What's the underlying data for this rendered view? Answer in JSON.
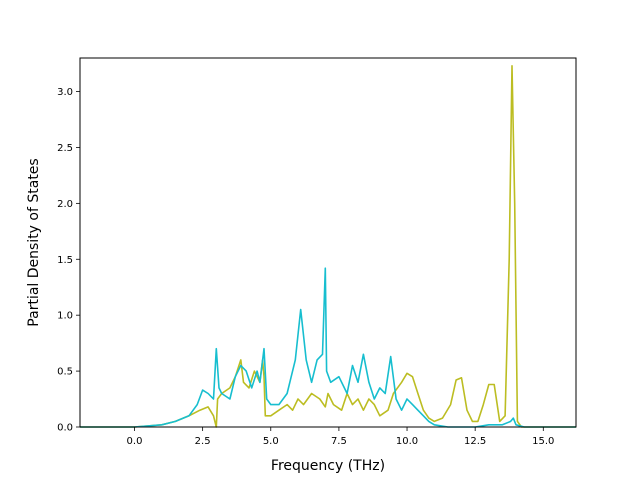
{
  "chart_data": {
    "type": "line",
    "title": "",
    "xlabel": "Frequency (THz)",
    "ylabel": "Partial Density of States",
    "xlim": [
      -2.0,
      16.2
    ],
    "ylim": [
      0.0,
      3.3
    ],
    "xticks": [
      0.0,
      2.5,
      5.0,
      7.5,
      10.0,
      12.5,
      15.0
    ],
    "xtick_labels": [
      "0.0",
      "2.5",
      "5.0",
      "7.5",
      "10.0",
      "12.5",
      "15.0"
    ],
    "yticks": [
      0.0,
      0.5,
      1.0,
      1.5,
      2.0,
      2.5,
      3.0
    ],
    "ytick_labels": [
      "0.0",
      "0.5",
      "1.0",
      "1.5",
      "2.0",
      "2.5",
      "3.0"
    ],
    "grid": false,
    "legend": false,
    "series": [
      {
        "color": "#bcbd22",
        "x": [
          -2.0,
          0.0,
          1.0,
          1.5,
          2.0,
          2.4,
          2.7,
          2.9,
          3.0,
          3.05,
          3.2,
          3.5,
          3.7,
          3.9,
          4.0,
          4.2,
          4.4,
          4.6,
          4.7,
          4.75,
          4.8,
          5.0,
          5.3,
          5.6,
          5.8,
          6.0,
          6.2,
          6.5,
          6.8,
          7.0,
          7.1,
          7.3,
          7.6,
          7.8,
          8.0,
          8.2,
          8.4,
          8.6,
          8.8,
          9.0,
          9.3,
          9.5,
          9.8,
          10.0,
          10.2,
          10.4,
          10.6,
          10.8,
          11.0,
          11.3,
          11.6,
          11.8,
          12.0,
          12.2,
          12.4,
          12.6,
          12.8,
          13.0,
          13.2,
          13.4,
          13.6,
          13.75,
          13.85,
          13.95,
          14.05,
          14.2,
          14.5,
          15.0,
          15.5,
          16.2
        ],
        "values": [
          0.0,
          0.0,
          0.02,
          0.05,
          0.1,
          0.15,
          0.18,
          0.1,
          0.0,
          0.25,
          0.3,
          0.35,
          0.45,
          0.6,
          0.4,
          0.35,
          0.5,
          0.4,
          0.6,
          0.45,
          0.1,
          0.1,
          0.15,
          0.2,
          0.15,
          0.25,
          0.2,
          0.3,
          0.25,
          0.18,
          0.3,
          0.2,
          0.15,
          0.3,
          0.2,
          0.25,
          0.15,
          0.25,
          0.2,
          0.1,
          0.15,
          0.3,
          0.4,
          0.48,
          0.45,
          0.3,
          0.15,
          0.08,
          0.05,
          0.08,
          0.2,
          0.42,
          0.44,
          0.15,
          0.05,
          0.05,
          0.2,
          0.38,
          0.38,
          0.05,
          0.1,
          1.5,
          3.23,
          2.0,
          0.05,
          0.0,
          0.0,
          0.0,
          0.0,
          0.0
        ]
      },
      {
        "color": "#17becf",
        "x": [
          -2.0,
          0.0,
          1.0,
          1.5,
          2.0,
          2.3,
          2.5,
          2.7,
          2.9,
          3.0,
          3.1,
          3.2,
          3.5,
          3.7,
          3.9,
          4.1,
          4.3,
          4.5,
          4.6,
          4.75,
          4.85,
          5.0,
          5.3,
          5.6,
          5.9,
          6.1,
          6.3,
          6.5,
          6.7,
          6.9,
          7.0,
          7.05,
          7.2,
          7.5,
          7.8,
          8.0,
          8.2,
          8.4,
          8.6,
          8.8,
          9.0,
          9.2,
          9.4,
          9.6,
          9.8,
          10.0,
          10.2,
          10.4,
          10.6,
          10.8,
          11.0,
          11.5,
          12.0,
          12.5,
          13.0,
          13.5,
          13.8,
          13.9,
          14.0,
          14.3,
          15.0,
          15.5,
          16.2
        ],
        "values": [
          0.0,
          0.0,
          0.02,
          0.05,
          0.1,
          0.2,
          0.33,
          0.3,
          0.25,
          0.7,
          0.35,
          0.3,
          0.25,
          0.45,
          0.55,
          0.5,
          0.35,
          0.5,
          0.4,
          0.7,
          0.25,
          0.2,
          0.2,
          0.3,
          0.6,
          1.05,
          0.6,
          0.4,
          0.6,
          0.65,
          1.42,
          0.5,
          0.4,
          0.45,
          0.3,
          0.55,
          0.4,
          0.65,
          0.4,
          0.25,
          0.35,
          0.3,
          0.63,
          0.25,
          0.15,
          0.25,
          0.2,
          0.15,
          0.1,
          0.05,
          0.02,
          0.0,
          0.0,
          0.0,
          0.02,
          0.02,
          0.05,
          0.08,
          0.02,
          0.0,
          0.0,
          0.0,
          0.0
        ]
      }
    ]
  }
}
